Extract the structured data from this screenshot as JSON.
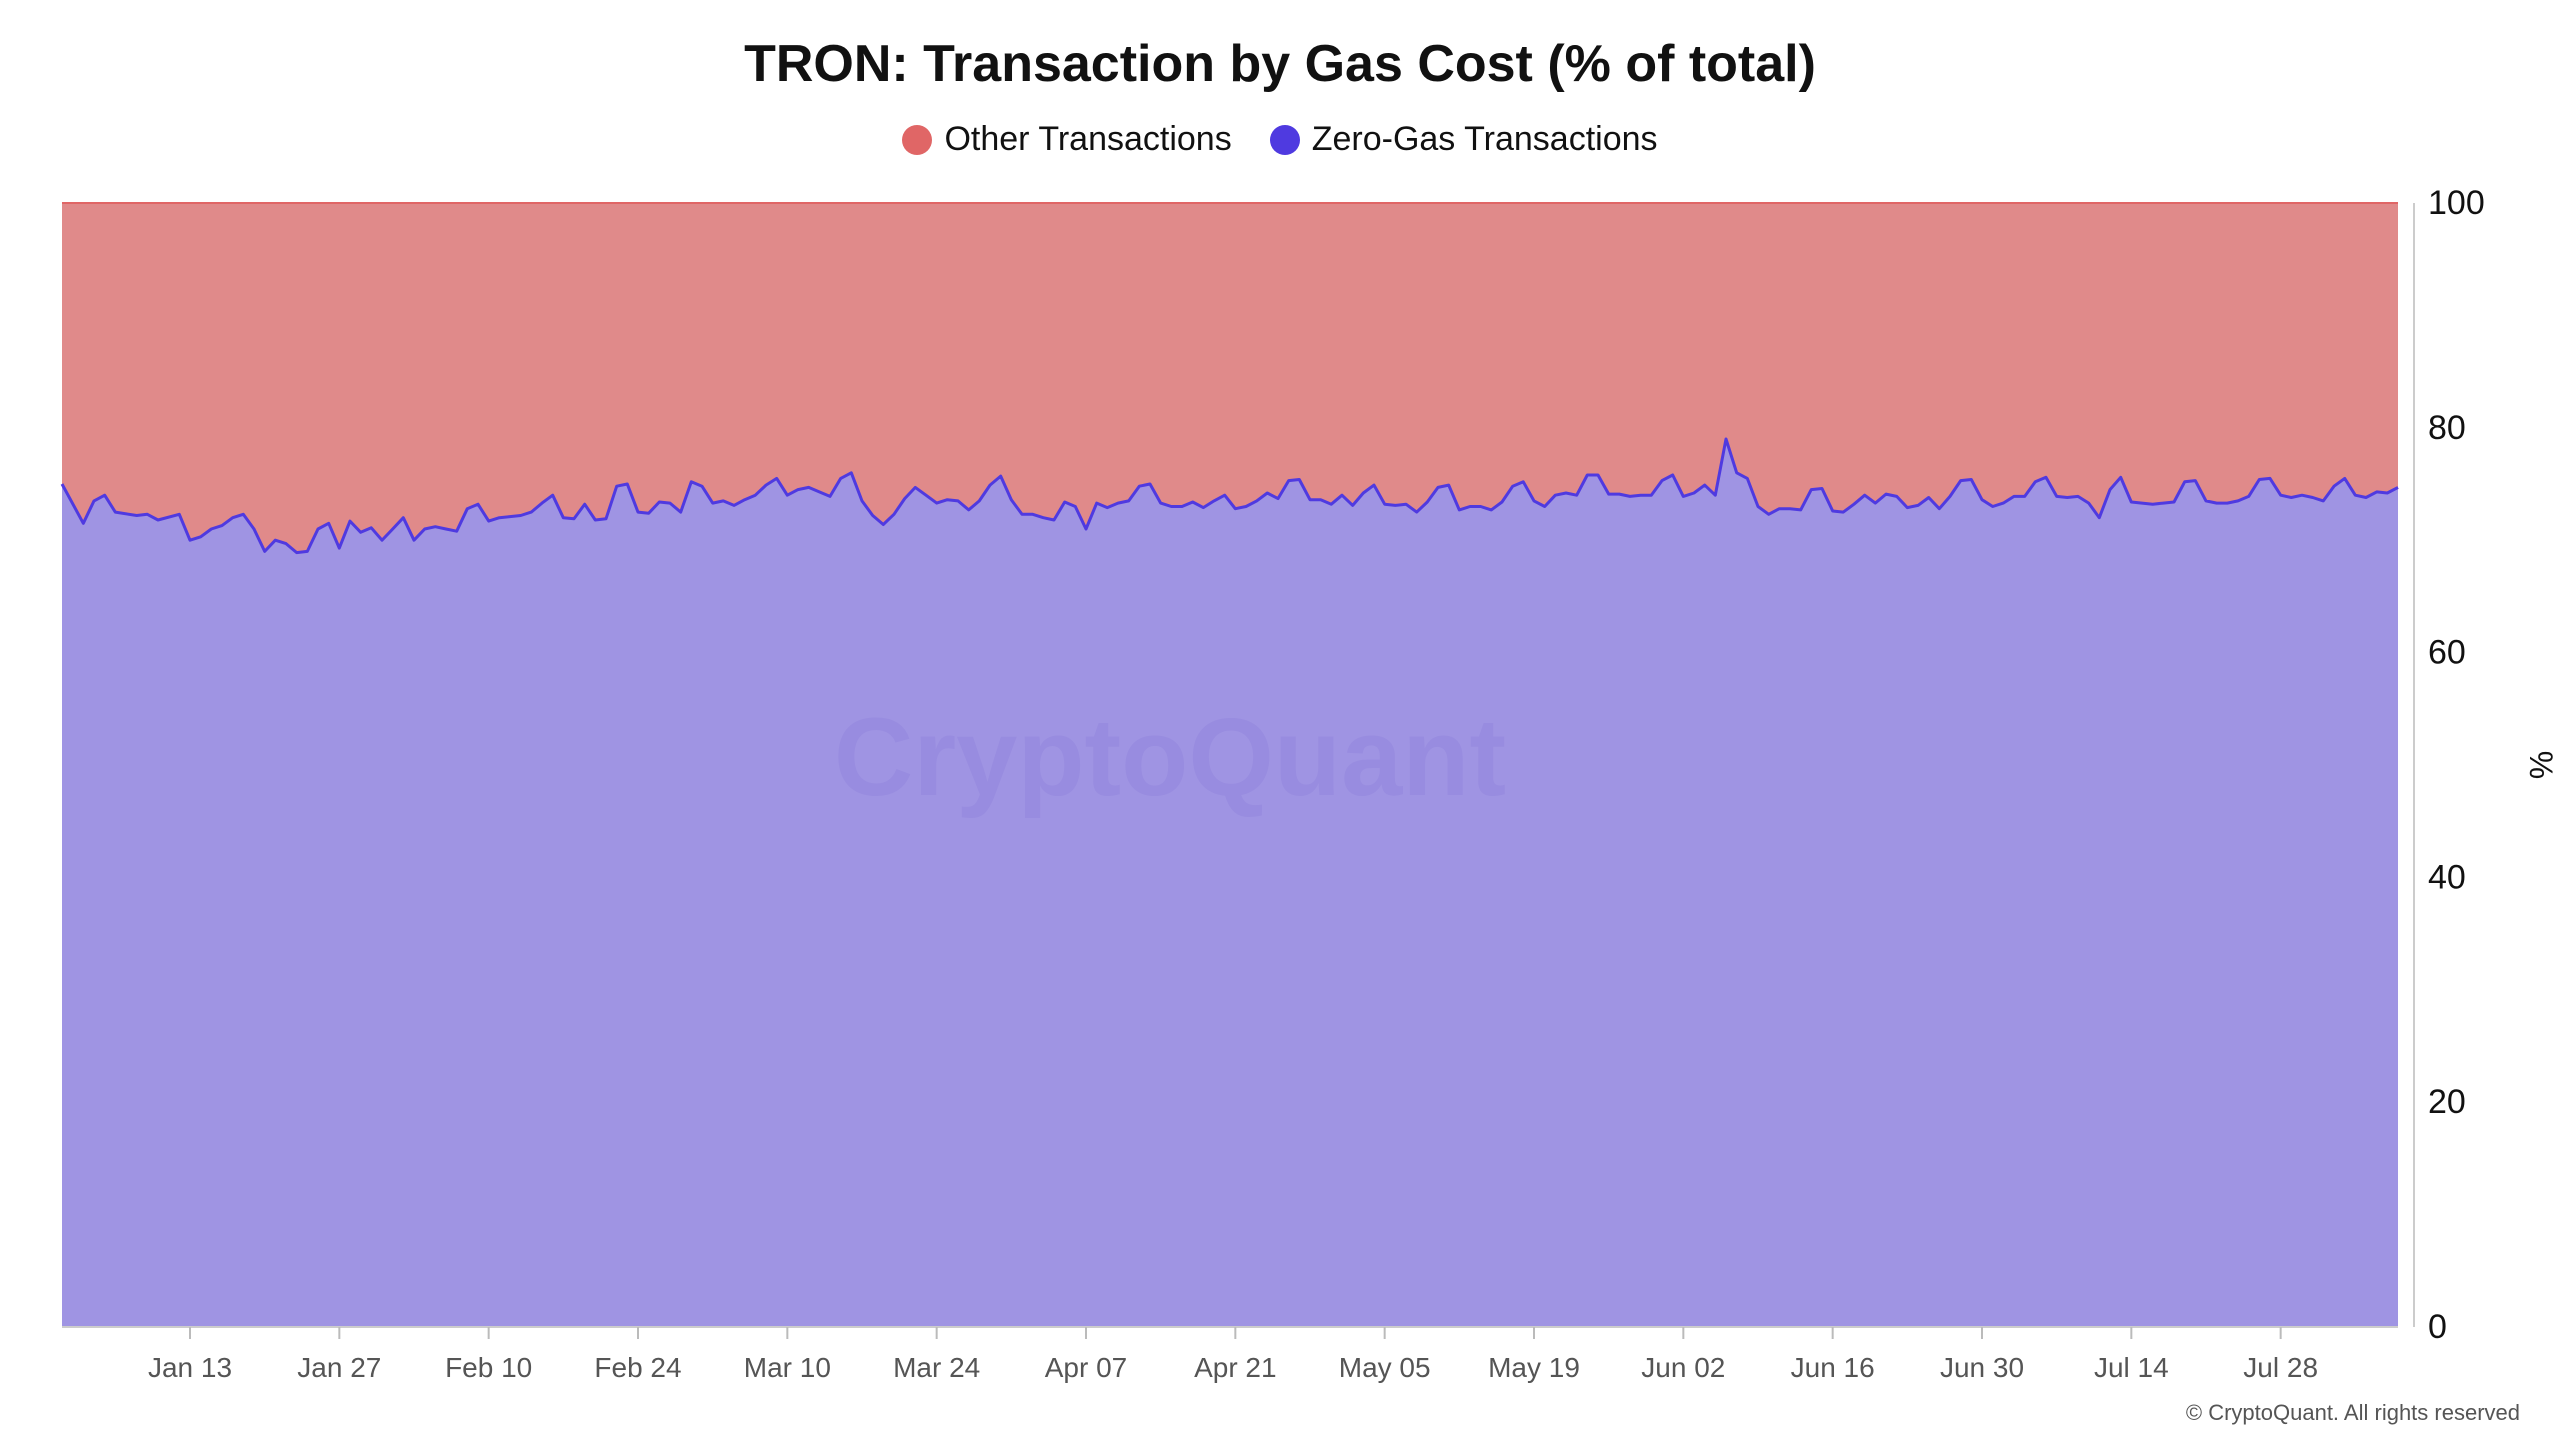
{
  "chart_data": {
    "type": "area",
    "title": "TRON: Transaction by Gas Cost (% of total)",
    "ylabel": "%",
    "xlabel": "",
    "ylim": [
      0,
      100
    ],
    "y_ticks": [
      "0",
      "20",
      "40",
      "60",
      "80",
      "100"
    ],
    "x_ticks": [
      "Jan 13",
      "Jan 27",
      "Feb 10",
      "Feb 24",
      "Mar 10",
      "Mar 24",
      "Apr 07",
      "Apr 21",
      "May 05",
      "May 19",
      "Jun 02",
      "Jun 16",
      "Jun 30",
      "Jul 14",
      "Jul 28"
    ],
    "x_tick_days": [
      12,
      26,
      40,
      54,
      68,
      82,
      96,
      110,
      124,
      138,
      152,
      166,
      180,
      194,
      208
    ],
    "stacked": true,
    "legend_position": "top-center",
    "series": [
      {
        "name": "Other Transactions",
        "color": "#e06666",
        "fill": "#e08a8a",
        "note": "remainder to 100%"
      },
      {
        "name": "Zero-Gas Transactions",
        "color": "#4f3ae0",
        "fill": "#9f94e3"
      }
    ],
    "zero_gas_values": [
      [
        0,
        75
      ],
      [
        2,
        71.5
      ],
      [
        3,
        73.5
      ],
      [
        4,
        74
      ],
      [
        5,
        72.5
      ],
      [
        7,
        72.2
      ],
      [
        8,
        72.3
      ],
      [
        9,
        71.8
      ],
      [
        11,
        72.3
      ],
      [
        12,
        70
      ],
      [
        13,
        70.3
      ],
      [
        14,
        71
      ],
      [
        15,
        71.3
      ],
      [
        16,
        72
      ],
      [
        17,
        72.3
      ],
      [
        18,
        71
      ],
      [
        19,
        69
      ],
      [
        20,
        70
      ],
      [
        21,
        69.7
      ],
      [
        22,
        68.9
      ],
      [
        23,
        69
      ],
      [
        24,
        71
      ],
      [
        25,
        71.5
      ],
      [
        26,
        69.3
      ],
      [
        27,
        71.7
      ],
      [
        28,
        70.7
      ],
      [
        29,
        71.1
      ],
      [
        30,
        70
      ],
      [
        31,
        71
      ],
      [
        32,
        72
      ],
      [
        33,
        70
      ],
      [
        34,
        71
      ],
      [
        35,
        71.2
      ],
      [
        36,
        71
      ],
      [
        37,
        70.8
      ],
      [
        38,
        72.8
      ],
      [
        39,
        73.2
      ],
      [
        40,
        71.7
      ],
      [
        41,
        72
      ],
      [
        42,
        72.1
      ],
      [
        43,
        72.2
      ],
      [
        44,
        72.5
      ],
      [
        45,
        73.3
      ],
      [
        46,
        74
      ],
      [
        47,
        72
      ],
      [
        48,
        71.9
      ],
      [
        49,
        73.2
      ],
      [
        50,
        71.8
      ],
      [
        51,
        71.9
      ],
      [
        52,
        74.8
      ],
      [
        53,
        75
      ],
      [
        54,
        72.5
      ],
      [
        55,
        72.4
      ],
      [
        56,
        73.4
      ],
      [
        57,
        73.3
      ],
      [
        58,
        72.5
      ],
      [
        59,
        75.2
      ],
      [
        60,
        74.8
      ],
      [
        61,
        73.3
      ],
      [
        62,
        73.5
      ],
      [
        63,
        73.1
      ],
      [
        64,
        73.6
      ],
      [
        65,
        74
      ],
      [
        66,
        74.9
      ],
      [
        67,
        75.5
      ],
      [
        68,
        74
      ],
      [
        69,
        74.5
      ],
      [
        70,
        74.7
      ],
      [
        71,
        74.3
      ],
      [
        72,
        73.9
      ],
      [
        73,
        75.5
      ],
      [
        74,
        76
      ],
      [
        75,
        73.5
      ],
      [
        76,
        72.2
      ],
      [
        77,
        71.4
      ],
      [
        78,
        72.3
      ],
      [
        79,
        73.7
      ],
      [
        80,
        74.7
      ],
      [
        81,
        74
      ],
      [
        82,
        73.3
      ],
      [
        83,
        73.6
      ],
      [
        84,
        73.5
      ],
      [
        85,
        72.7
      ],
      [
        86,
        73.5
      ],
      [
        87,
        74.9
      ],
      [
        88,
        75.7
      ],
      [
        89,
        73.6
      ],
      [
        90,
        72.3
      ],
      [
        91,
        72.3
      ],
      [
        92,
        72
      ],
      [
        93,
        71.8
      ],
      [
        94,
        73.4
      ],
      [
        95,
        73
      ],
      [
        96,
        71
      ],
      [
        97,
        73.3
      ],
      [
        98,
        72.9
      ],
      [
        99,
        73.3
      ],
      [
        100,
        73.5
      ],
      [
        101,
        74.8
      ],
      [
        102,
        75
      ],
      [
        103,
        73.3
      ],
      [
        104,
        73
      ],
      [
        105,
        73
      ],
      [
        106,
        73.4
      ],
      [
        107,
        72.9
      ],
      [
        108,
        73.5
      ],
      [
        109,
        74
      ],
      [
        110,
        72.8
      ],
      [
        111,
        73
      ],
      [
        112,
        73.5
      ],
      [
        113,
        74.2
      ],
      [
        114,
        73.7
      ],
      [
        115,
        75.3
      ],
      [
        116,
        75.4
      ],
      [
        117,
        73.6
      ],
      [
        118,
        73.6
      ],
      [
        119,
        73.2
      ],
      [
        120,
        74
      ],
      [
        121,
        73.1
      ],
      [
        122,
        74.2
      ],
      [
        123,
        74.9
      ],
      [
        124,
        73.2
      ],
      [
        125,
        73.1
      ],
      [
        126,
        73.2
      ],
      [
        127,
        72.5
      ],
      [
        128,
        73.4
      ],
      [
        129,
        74.7
      ],
      [
        130,
        74.9
      ],
      [
        131,
        72.7
      ],
      [
        132,
        73
      ],
      [
        133,
        73
      ],
      [
        134,
        72.7
      ],
      [
        135,
        73.4
      ],
      [
        136,
        74.8
      ],
      [
        137,
        75.2
      ],
      [
        138,
        73.5
      ],
      [
        139,
        73
      ],
      [
        140,
        74
      ],
      [
        141,
        74.2
      ],
      [
        142,
        74
      ],
      [
        143,
        75.8
      ],
      [
        144,
        75.8
      ],
      [
        145,
        74.1
      ],
      [
        146,
        74.1
      ],
      [
        147,
        73.9
      ],
      [
        148,
        74
      ],
      [
        149,
        74
      ],
      [
        150,
        75.3
      ],
      [
        151,
        75.8
      ],
      [
        152,
        73.9
      ],
      [
        153,
        74.2
      ],
      [
        154,
        74.9
      ],
      [
        155,
        74
      ],
      [
        156,
        79
      ],
      [
        157,
        76
      ],
      [
        158,
        75.5
      ],
      [
        159,
        73
      ],
      [
        160,
        72.3
      ],
      [
        161,
        72.8
      ],
      [
        162,
        72.8
      ],
      [
        163,
        72.7
      ],
      [
        164,
        74.5
      ],
      [
        165,
        74.6
      ],
      [
        166,
        72.6
      ],
      [
        167,
        72.5
      ],
      [
        168,
        73.2
      ],
      [
        169,
        74
      ],
      [
        170,
        73.3
      ],
      [
        171,
        74.1
      ],
      [
        172,
        73.9
      ],
      [
        173,
        72.9
      ],
      [
        174,
        73.1
      ],
      [
        175,
        73.8
      ],
      [
        176,
        72.8
      ],
      [
        177,
        73.9
      ],
      [
        178,
        75.3
      ],
      [
        179,
        75.4
      ],
      [
        180,
        73.6
      ],
      [
        181,
        73
      ],
      [
        182,
        73.3
      ],
      [
        183,
        73.9
      ],
      [
        184,
        73.9
      ],
      [
        185,
        75.2
      ],
      [
        186,
        75.6
      ],
      [
        187,
        73.9
      ],
      [
        188,
        73.8
      ],
      [
        189,
        73.9
      ],
      [
        190,
        73.3
      ],
      [
        191,
        72
      ],
      [
        192,
        74.5
      ],
      [
        193,
        75.6
      ],
      [
        194,
        73.4
      ],
      [
        195,
        73.3
      ],
      [
        196,
        73.2
      ],
      [
        197,
        73.3
      ],
      [
        198,
        73.4
      ],
      [
        199,
        75.2
      ],
      [
        200,
        75.3
      ],
      [
        201,
        73.5
      ],
      [
        202,
        73.3
      ],
      [
        203,
        73.3
      ],
      [
        204,
        73.5
      ],
      [
        205,
        73.9
      ],
      [
        206,
        75.4
      ],
      [
        207,
        75.5
      ],
      [
        208,
        74
      ],
      [
        209,
        73.8
      ],
      [
        210,
        74
      ],
      [
        211,
        73.8
      ],
      [
        212,
        73.5
      ],
      [
        213,
        74.8
      ],
      [
        214,
        75.5
      ],
      [
        215,
        74
      ],
      [
        216,
        73.8
      ],
      [
        217,
        74.3
      ],
      [
        218,
        74.2
      ],
      [
        219,
        74.7
      ]
    ],
    "watermark": "CryptoQuant"
  },
  "copyright": "© CryptoQuant. All rights reserved"
}
